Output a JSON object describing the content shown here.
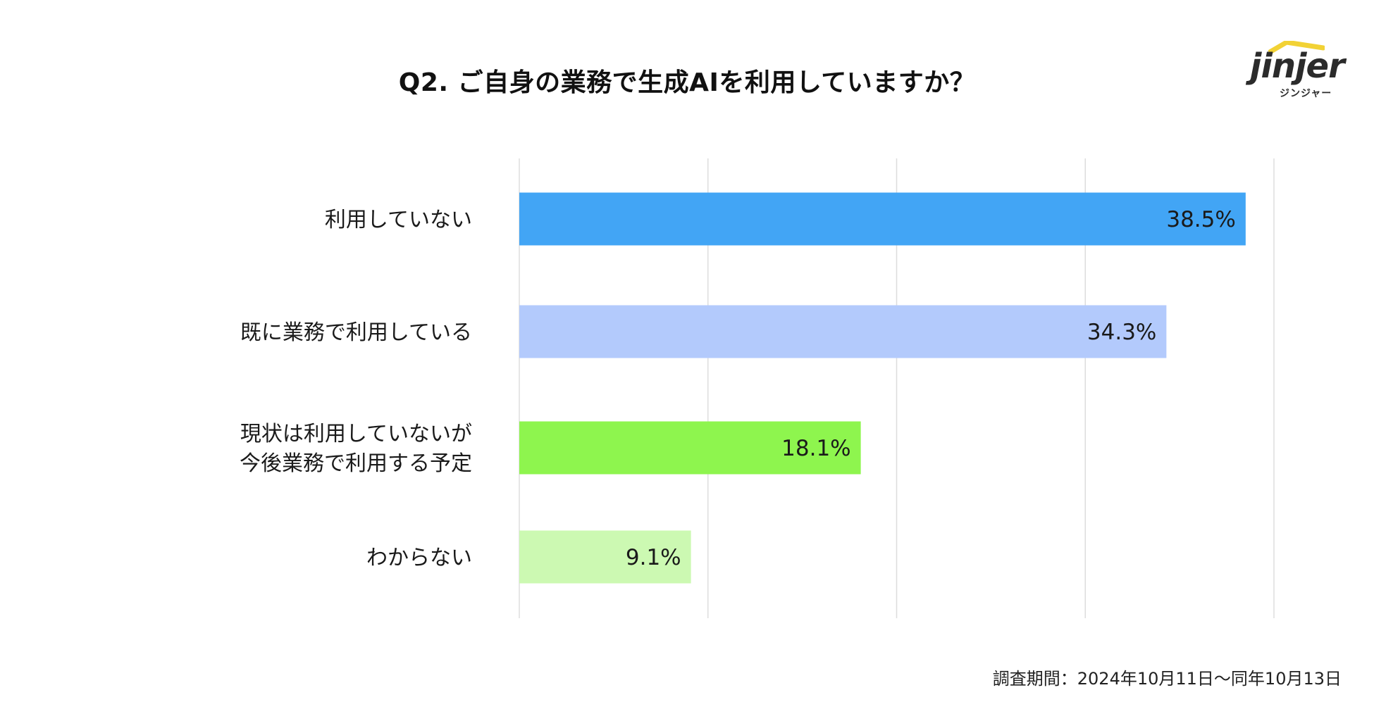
{
  "header": {
    "title": "Q2. ご自身の業務で生成AIを利用していますか？"
  },
  "logo": {
    "word": "jinjer",
    "kana": "ジンジャー",
    "roof_color": "#f2d235"
  },
  "footnote": {
    "text": "調査期間：2024年10月11日〜同年10月13日"
  },
  "chart_data": {
    "type": "bar",
    "orientation": "horizontal",
    "title": "Q2. ご自身の業務で生成AIを利用していますか？",
    "unit": "%",
    "categories": [
      [
        "利用していない"
      ],
      [
        "既に業務で利用している"
      ],
      [
        "現状は利用していないが",
        "今後業務で利用する予定"
      ],
      [
        "わからない"
      ]
    ],
    "values": [
      38.5,
      34.3,
      18.1,
      9.1
    ],
    "value_labels": [
      "38.5%",
      "34.3%",
      "18.1%",
      "9.1%"
    ],
    "colors": [
      "#42a5f5",
      "#b3cafc",
      "#8ef54e",
      "#ccf9b2"
    ],
    "xlim": [
      0,
      40
    ],
    "gridline_values": [
      0,
      10,
      20,
      30,
      40
    ],
    "grid": true,
    "legend": "none"
  }
}
